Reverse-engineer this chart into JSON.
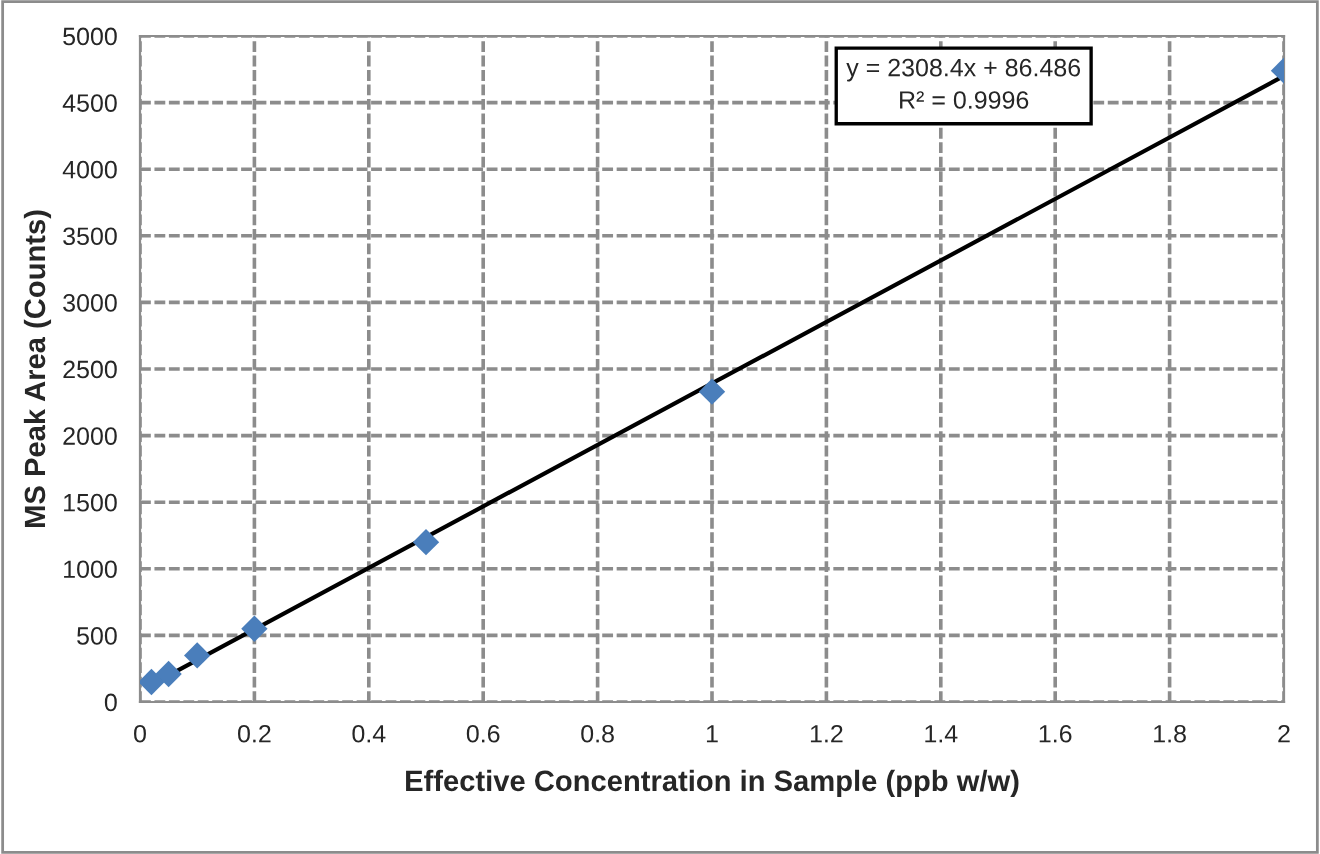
{
  "chart_data": {
    "type": "scatter",
    "xlabel": "Effective Concentration in Sample (ppb w/w)",
    "ylabel": "MS Peak Area (Counts)",
    "annotations": [
      "y = 2308.4x + 86.486\nR² = 0.9996"
    ],
    "series": [
      {
        "color": "#4a7ebb",
        "marker": "diamond",
        "x": [
          0.02,
          0.05,
          0.1,
          0.2,
          0.5,
          1,
          2
        ],
        "values": [
          150,
          210,
          350,
          550,
          1200,
          2330,
          4740
        ]
      },
      {
        "type": "line",
        "color": "#000000",
        "marker": "none",
        "line_style": "solid",
        "x": [
          0.02,
          2
        ],
        "values": [
          130,
          4700
        ]
      }
    ],
    "xlim": [
      0,
      2
    ],
    "xticks": [
      0,
      0.2,
      0.4,
      0.6,
      0.8,
      1,
      1.2,
      1.4,
      1.6,
      1.8,
      2
    ],
    "ylim": [
      0,
      5000
    ],
    "yticks": [
      0,
      500,
      1000,
      1500,
      2000,
      2500,
      3000,
      3500,
      4000,
      4500,
      5000
    ],
    "grid": true,
    "legend": false
  }
}
